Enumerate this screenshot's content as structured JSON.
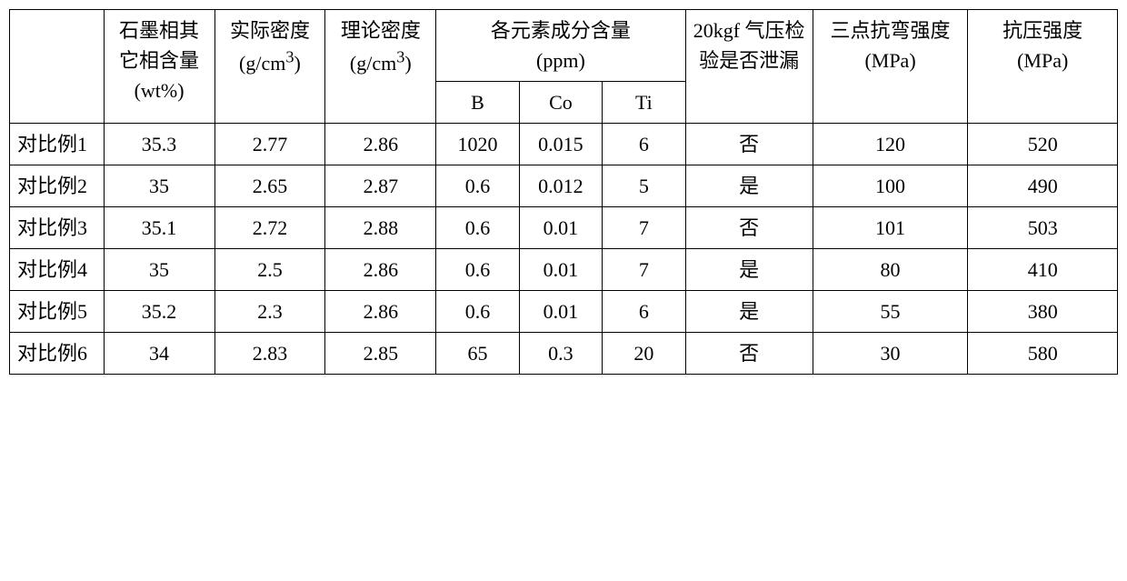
{
  "table": {
    "headers": {
      "col_label": "",
      "col_graphite": "石墨相其它相含量",
      "col_graphite_unit": "(wt%)",
      "col_actual": "实际密度",
      "col_actual_unit": "(g/cm",
      "col_actual_sup": "3",
      "col_actual_close": ")",
      "col_theory": "理论密度",
      "col_theory_unit": "(g/cm",
      "col_theory_sup": "3",
      "col_theory_close": ")",
      "col_element_group": "各元素成分含量",
      "col_element_unit": "(ppm)",
      "col_b": "B",
      "col_co": "Co",
      "col_ti": "Ti",
      "col_leak": "20kgf 气压检验是否泄漏",
      "col_bend": "三点抗弯强度",
      "col_bend_unit": "(MPa)",
      "col_comp": "抗压强度",
      "col_comp_unit": "(MPa)"
    },
    "rows": [
      {
        "label": "对比例1",
        "graphite": "35.3",
        "actual": "2.77",
        "theory": "2.86",
        "b": "1020",
        "co": "0.015",
        "ti": "6",
        "leak": "否",
        "bend": "120",
        "comp": "520"
      },
      {
        "label": "对比例2",
        "graphite": "35",
        "actual": "2.65",
        "theory": "2.87",
        "b": "0.6",
        "co": "0.012",
        "ti": "5",
        "leak": "是",
        "bend": "100",
        "comp": "490"
      },
      {
        "label": "对比例3",
        "graphite": "35.1",
        "actual": "2.72",
        "theory": "2.88",
        "b": "0.6",
        "co": "0.01",
        "ti": "7",
        "leak": "否",
        "bend": "101",
        "comp": "503"
      },
      {
        "label": "对比例4",
        "graphite": "35",
        "actual": "2.5",
        "theory": "2.86",
        "b": "0.6",
        "co": "0.01",
        "ti": "7",
        "leak": "是",
        "bend": "80",
        "comp": "410"
      },
      {
        "label": "对比例5",
        "graphite": "35.2",
        "actual": "2.3",
        "theory": "2.86",
        "b": "0.6",
        "co": "0.01",
        "ti": "6",
        "leak": "是",
        "bend": "55",
        "comp": "380"
      },
      {
        "label": "对比例6",
        "graphite": "34",
        "actual": "2.83",
        "theory": "2.85",
        "b": "65",
        "co": "0.3",
        "ti": "20",
        "leak": "否",
        "bend": "30",
        "comp": "580"
      }
    ]
  },
  "style": {
    "border_color": "#000000",
    "background": "#ffffff",
    "font_size": 22,
    "font_family": "SimSun"
  }
}
